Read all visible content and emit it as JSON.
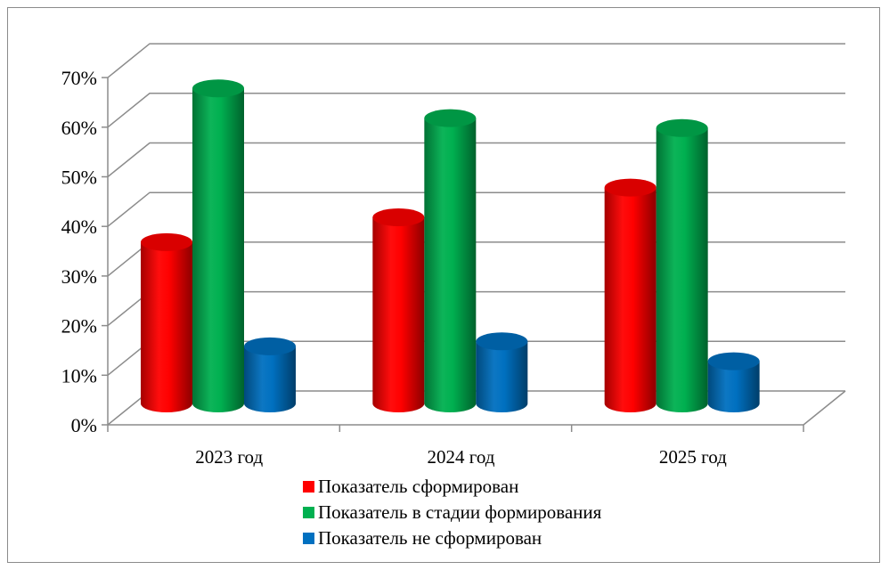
{
  "chart_data": {
    "type": "bar",
    "categories": [
      "2023 год",
      "2024 год",
      "2025 год"
    ],
    "series": [
      {
        "name": "Показатель сформирован",
        "color": "#ff0000",
        "values": [
          30,
          35,
          41
        ]
      },
      {
        "name": "Показатель в стадии формирования",
        "color": "#00b050",
        "values": [
          61,
          55,
          53
        ]
      },
      {
        "name": "Показатель не сформирован",
        "color": "#0070c0",
        "values": [
          9,
          10,
          6
        ]
      }
    ],
    "ylim": [
      0,
      70
    ],
    "ytick_step": 10,
    "ytick_labels": [
      "0%",
      "10%",
      "20%",
      "30%",
      "40%",
      "50%",
      "60%",
      "70%"
    ],
    "grid": true,
    "legend_position": "bottom",
    "style": "3d-cylinder"
  }
}
